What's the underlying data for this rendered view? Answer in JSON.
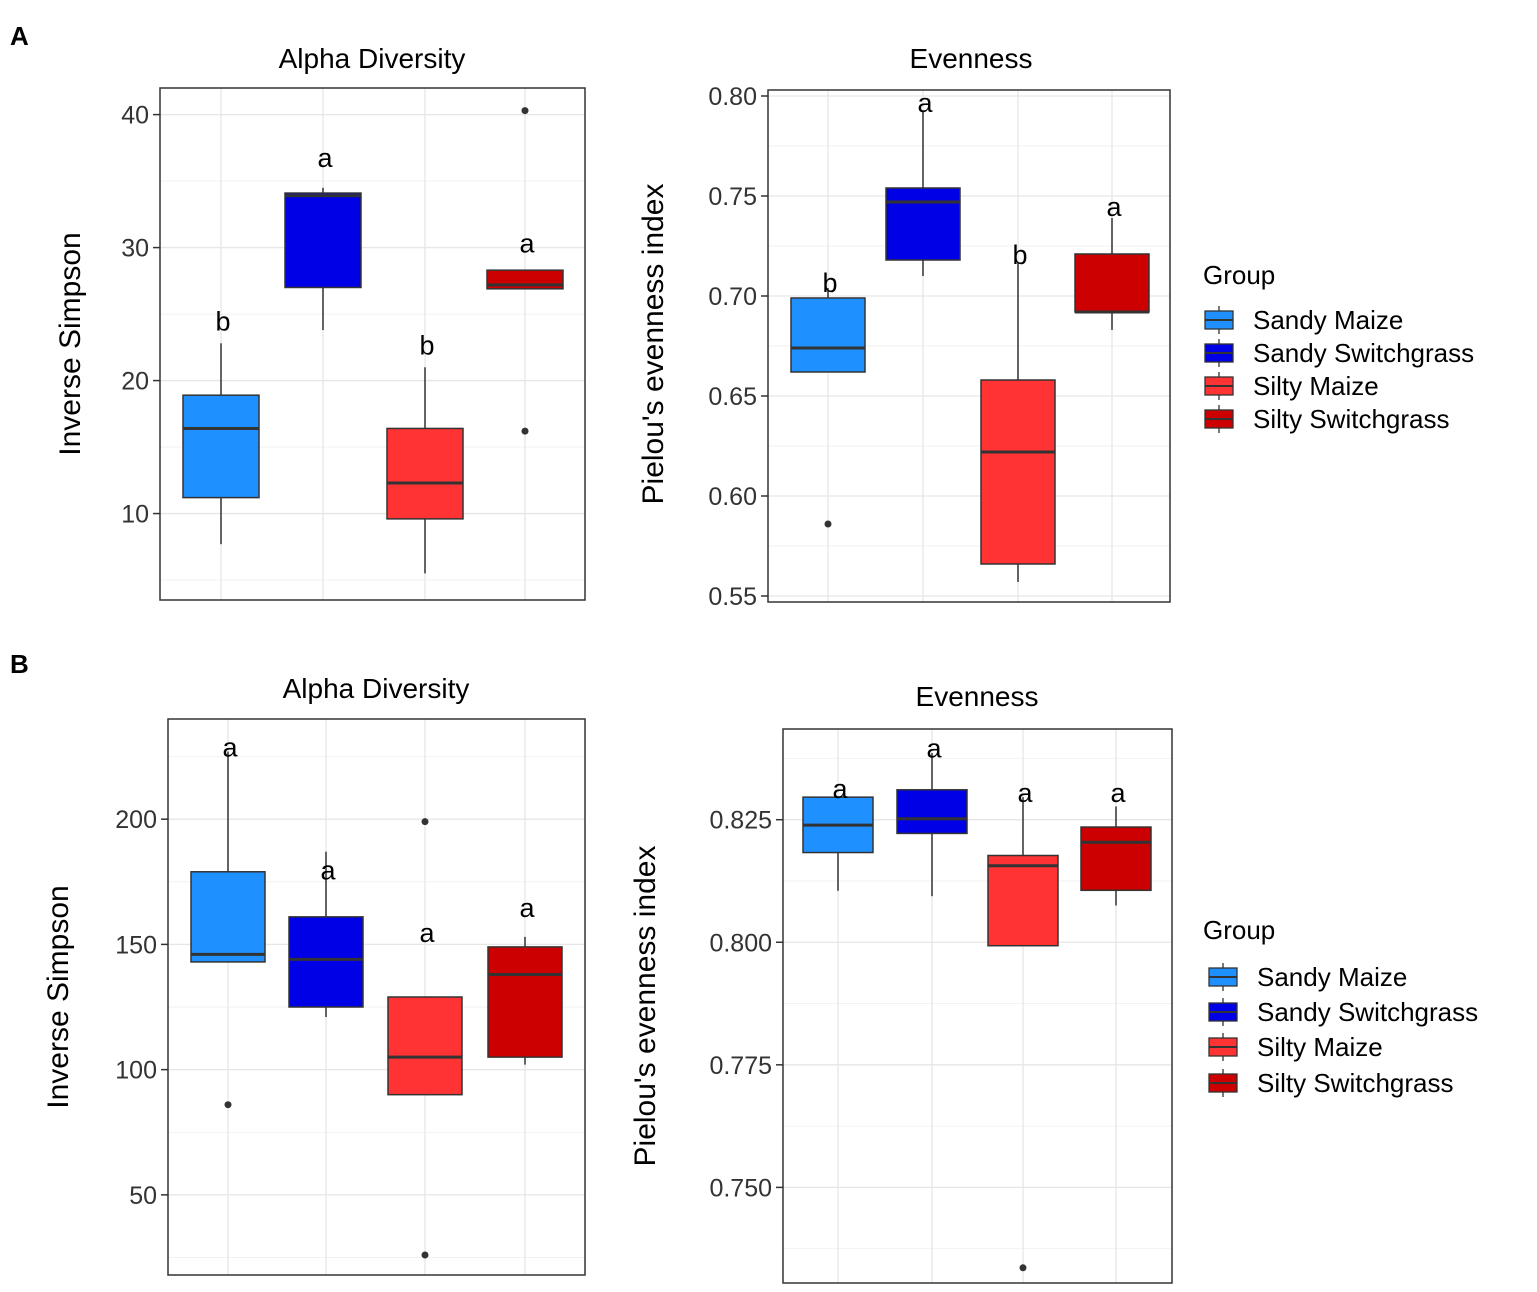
{
  "panels": [
    {
      "label": "A"
    },
    {
      "label": "B"
    }
  ],
  "legend": {
    "title": "Group",
    "entries": [
      {
        "name": "Sandy Maize",
        "color": "#1E90FF"
      },
      {
        "name": "Sandy Switchgrass",
        "color": "#0000E6"
      },
      {
        "name": "Silty Maize",
        "color": "#FF3333"
      },
      {
        "name": "Silty Switchgrass",
        "color": "#CC0000"
      }
    ]
  },
  "chart_data": [
    {
      "panel": "A",
      "type": "boxplot",
      "title": "Alpha Diversity",
      "xlabel": "",
      "ylabel": "Inverse Simpson",
      "ylim": [
        3.5,
        42
      ],
      "yticks": [
        10,
        20,
        30,
        40
      ],
      "tick_labels": [
        "10",
        "20",
        "30",
        "40"
      ],
      "groups": [
        "Sandy Maize",
        "Sandy Switchgrass",
        "Silty Maize",
        "Silty Switchgrass"
      ],
      "colors": [
        "#1E90FF",
        "#0000E6",
        "#FF3333",
        "#CC0000"
      ],
      "boxes": [
        {
          "whisker_low": 7.7,
          "q1": 11.2,
          "median": 16.4,
          "q3": 18.9,
          "whisker_high": 22.8,
          "outliers": []
        },
        {
          "whisker_low": 23.8,
          "q1": 27.0,
          "median": 33.9,
          "q3": 34.1,
          "whisker_high": 34.5,
          "outliers": []
        },
        {
          "whisker_low": 5.5,
          "q1": 9.6,
          "median": 12.3,
          "q3": 16.4,
          "whisker_high": 21.0,
          "outliers": []
        },
        {
          "whisker_low": 26.9,
          "q1": 26.9,
          "median": 27.2,
          "q3": 28.3,
          "whisker_high": 28.3,
          "outliers": [
            16.2,
            40.3
          ]
        }
      ],
      "significance_letters": [
        "b",
        "a",
        "b",
        "a"
      ],
      "letter_y": [
        24.5,
        36.8,
        22.7,
        30.4
      ]
    },
    {
      "panel": "A",
      "type": "boxplot",
      "title": "Evenness",
      "xlabel": "",
      "ylabel": "Pielou's evenness index",
      "ylim": [
        0.547,
        0.803
      ],
      "yticks": [
        0.55,
        0.6,
        0.65,
        0.7,
        0.75,
        0.8
      ],
      "tick_labels": [
        "0.55",
        "0.60",
        "0.65",
        "0.70",
        "0.75",
        "0.80"
      ],
      "groups": [
        "Sandy Maize",
        "Sandy Switchgrass",
        "Silty Maize",
        "Silty Switchgrass"
      ],
      "colors": [
        "#1E90FF",
        "#0000E6",
        "#FF3333",
        "#CC0000"
      ],
      "boxes": [
        {
          "whisker_low": 0.662,
          "q1": 0.662,
          "median": 0.674,
          "q3": 0.699,
          "whisker_high": 0.704,
          "outliers": [
            0.586
          ]
        },
        {
          "whisker_low": 0.71,
          "q1": 0.718,
          "median": 0.747,
          "q3": 0.754,
          "whisker_high": 0.792,
          "outliers": []
        },
        {
          "whisker_low": 0.557,
          "q1": 0.566,
          "median": 0.622,
          "q3": 0.658,
          "whisker_high": 0.717,
          "outliers": []
        },
        {
          "whisker_low": 0.683,
          "q1": 0.692,
          "median": 0.692,
          "q3": 0.721,
          "whisker_high": 0.739,
          "outliers": []
        }
      ],
      "significance_letters": [
        "b",
        "a",
        "b",
        "a"
      ],
      "letter_y": [
        0.707,
        0.797,
        0.721,
        0.745
      ]
    },
    {
      "panel": "B",
      "type": "boxplot",
      "title": "Alpha Diversity",
      "xlabel": "",
      "ylabel": "Inverse Simpson",
      "ylim": [
        18,
        240
      ],
      "yticks": [
        50,
        100,
        150,
        200
      ],
      "tick_labels": [
        "50",
        "100",
        "150",
        "200"
      ],
      "groups": [
        "Sandy Maize",
        "Sandy Switchgrass",
        "Silty Maize",
        "Silty Switchgrass"
      ],
      "colors": [
        "#1E90FF",
        "#0000E6",
        "#FF3333",
        "#CC0000"
      ],
      "boxes": [
        {
          "whisker_low": 143,
          "q1": 143,
          "median": 146,
          "q3": 179,
          "whisker_high": 227,
          "outliers": [
            86
          ]
        },
        {
          "whisker_low": 121,
          "q1": 125,
          "median": 144,
          "q3": 161,
          "whisker_high": 187,
          "outliers": []
        },
        {
          "whisker_low": 90,
          "q1": 90,
          "median": 105,
          "q3": 129,
          "whisker_high": 129,
          "outliers": [
            26,
            199
          ]
        },
        {
          "whisker_low": 102,
          "q1": 105,
          "median": 138,
          "q3": 149,
          "whisker_high": 153,
          "outliers": []
        }
      ],
      "significance_letters": [
        "a",
        "a",
        "a",
        "a"
      ],
      "letter_y": [
        229,
        180,
        155,
        165
      ]
    },
    {
      "panel": "B",
      "type": "boxplot",
      "title": "Evenness",
      "xlabel": "",
      "ylabel": "Pielou's evenness index",
      "ylim": [
        0.7305,
        0.8435
      ],
      "yticks": [
        0.75,
        0.775,
        0.8,
        0.825
      ],
      "tick_labels": [
        "0.750",
        "0.775",
        "0.800",
        "0.825"
      ],
      "groups": [
        "Sandy Maize",
        "Sandy Switchgrass",
        "Silty Maize",
        "Silty Switchgrass"
      ],
      "colors": [
        "#1E90FF",
        "#0000E6",
        "#FF3333",
        "#CC0000"
      ],
      "boxes": [
        {
          "whisker_low": 0.8105,
          "q1": 0.8183,
          "median": 0.8239,
          "q3": 0.8296,
          "whisker_high": 0.8296,
          "outliers": []
        },
        {
          "whisker_low": 0.8094,
          "q1": 0.8222,
          "median": 0.8252,
          "q3": 0.8311,
          "whisker_high": 0.8386,
          "outliers": []
        },
        {
          "whisker_low": 0.7993,
          "q1": 0.7993,
          "median": 0.8156,
          "q3": 0.8177,
          "whisker_high": 0.8296,
          "outliers": [
            0.7336
          ]
        },
        {
          "whisker_low": 0.8075,
          "q1": 0.8106,
          "median": 0.8204,
          "q3": 0.8235,
          "whisker_high": 0.8277,
          "outliers": []
        }
      ],
      "significance_letters": [
        "a",
        "a",
        "a",
        "a"
      ],
      "letter_y": [
        0.8315,
        0.8397,
        0.8307,
        0.8307
      ]
    }
  ]
}
